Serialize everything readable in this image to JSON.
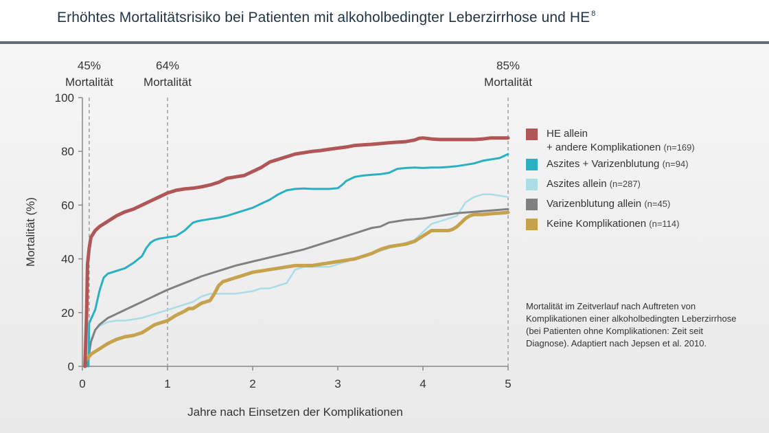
{
  "title": "Erhöhtes Mortalitätsrisiko bei Patienten mit alkoholbedingter Leberzirrhose und HE",
  "title_superscript": "8",
  "colors": {
    "title_text": "#1f3446",
    "rule": "#5f6e79",
    "axis": "#8a8a8a",
    "ref_line": "#8a8a8a"
  },
  "chart_data": {
    "type": "line",
    "xlabel": "Jahre nach Einsetzen der Komplikationen",
    "ylabel": "Mortalität (%)",
    "xlim": [
      0,
      5
    ],
    "ylim": [
      0,
      100
    ],
    "xticks": [
      "0",
      "1",
      "2",
      "3",
      "4",
      "5"
    ],
    "yticks": [
      "0",
      "20",
      "40",
      "60",
      "80",
      "100"
    ],
    "grid": false,
    "legend_position": "right",
    "reference_lines": [
      {
        "x": 0.08,
        "pct": "45%",
        "text": "Mortalität"
      },
      {
        "x": 1.0,
        "pct": "64%",
        "text": "Mortalität"
      },
      {
        "x": 5.0,
        "pct": "85%",
        "text": "Mortalität"
      }
    ],
    "series": [
      {
        "name": "HE allein",
        "name_line2": "+ andere Komplikationen",
        "n": "(n=169)",
        "color": "#b05656",
        "stroke": 5,
        "x": [
          0.03,
          0.05,
          0.06,
          0.08,
          0.1,
          0.15,
          0.2,
          0.3,
          0.4,
          0.5,
          0.6,
          0.7,
          0.8,
          0.9,
          1.0,
          1.1,
          1.2,
          1.3,
          1.4,
          1.5,
          1.6,
          1.7,
          1.8,
          1.9,
          2.0,
          2.1,
          2.2,
          2.3,
          2.4,
          2.5,
          2.6,
          2.7,
          2.8,
          2.9,
          3.0,
          3.1,
          3.2,
          3.3,
          3.4,
          3.5,
          3.6,
          3.7,
          3.8,
          3.9,
          3.95,
          4.0,
          4.1,
          4.2,
          4.3,
          4.4,
          4.5,
          4.6,
          4.7,
          4.8,
          4.9,
          5.0
        ],
        "y": [
          0,
          20,
          38,
          44,
          48,
          50.5,
          52,
          54,
          56,
          57.5,
          58.5,
          60,
          61.5,
          63,
          64.5,
          65.5,
          66,
          66.3,
          66.8,
          67.5,
          68.5,
          70,
          70.5,
          71,
          72.5,
          74,
          76,
          77,
          78,
          79,
          79.5,
          80,
          80.3,
          80.8,
          81.2,
          81.6,
          82.2,
          82.4,
          82.6,
          82.9,
          83.2,
          83.4,
          83.6,
          84.2,
          84.8,
          85,
          84.6,
          84.4,
          84.4,
          84.4,
          84.4,
          84.4,
          84.6,
          85,
          85,
          85
        ]
      },
      {
        "name": "Aszites + Varizenblutung",
        "n": "(n=94)",
        "color": "#2ab0c3",
        "stroke": 3,
        "x": [
          0.07,
          0.08,
          0.1,
          0.15,
          0.2,
          0.25,
          0.3,
          0.4,
          0.5,
          0.6,
          0.7,
          0.75,
          0.8,
          0.85,
          0.9,
          1.0,
          1.1,
          1.2,
          1.25,
          1.3,
          1.35,
          1.4,
          1.5,
          1.6,
          1.7,
          1.8,
          1.9,
          2.0,
          2.1,
          2.2,
          2.3,
          2.4,
          2.5,
          2.6,
          2.7,
          2.8,
          2.9,
          3.0,
          3.05,
          3.1,
          3.2,
          3.3,
          3.4,
          3.5,
          3.6,
          3.7,
          3.8,
          3.9,
          4.0,
          4.1,
          4.2,
          4.3,
          4.4,
          4.5,
          4.6,
          4.7,
          4.8,
          4.9,
          5.0
        ],
        "y": [
          0,
          16,
          17.5,
          21,
          28,
          33,
          34.5,
          35.5,
          36.5,
          38.5,
          41,
          44,
          46,
          47,
          47.5,
          48,
          48.5,
          50.5,
          52,
          53.5,
          54,
          54.3,
          54.8,
          55.3,
          56,
          57,
          58,
          59,
          60.5,
          62,
          64,
          65.5,
          66,
          66.2,
          66,
          66,
          66,
          66.3,
          67.5,
          69,
          70.5,
          71,
          71.3,
          71.5,
          72,
          73.5,
          73.8,
          74,
          73.8,
          74,
          74,
          74.2,
          74.5,
          75,
          75.5,
          76.5,
          77,
          77.5,
          79
        ]
      },
      {
        "name": "Aszites allein",
        "n": "(n=287)",
        "color": "#aadde6",
        "stroke": 2.5,
        "x": [
          0.07,
          0.1,
          0.15,
          0.2,
          0.3,
          0.4,
          0.5,
          0.6,
          0.7,
          0.8,
          0.9,
          1.0,
          1.1,
          1.2,
          1.3,
          1.4,
          1.5,
          1.6,
          1.7,
          1.8,
          1.9,
          2.0,
          2.1,
          2.2,
          2.3,
          2.4,
          2.5,
          2.6,
          2.7,
          2.8,
          2.9,
          3.0,
          3.1,
          3.2,
          3.3,
          3.4,
          3.5,
          3.6,
          3.7,
          3.8,
          3.9,
          4.0,
          4.1,
          4.2,
          4.3,
          4.4,
          4.5,
          4.6,
          4.7,
          4.8,
          4.9,
          5.0
        ],
        "y": [
          0,
          10,
          13.5,
          15,
          16.5,
          17,
          17,
          17.5,
          18,
          19,
          20,
          21,
          22,
          23,
          24,
          26,
          27,
          27,
          27,
          27,
          27.5,
          28,
          29,
          29,
          30,
          31,
          36,
          37,
          37,
          37,
          37,
          38,
          39,
          40,
          41,
          42,
          43,
          44,
          45,
          46,
          47,
          50,
          53,
          54,
          55,
          56,
          61,
          63,
          64,
          64,
          63.5,
          63
        ]
      },
      {
        "name": "Varizenblutung allein",
        "n": "(n=45)",
        "color": "#808080",
        "stroke": 3,
        "x": [
          0.05,
          0.08,
          0.1,
          0.15,
          0.2,
          0.3,
          0.4,
          0.5,
          0.6,
          0.7,
          0.8,
          0.9,
          1.0,
          1.2,
          1.4,
          1.6,
          1.8,
          2.0,
          2.2,
          2.4,
          2.6,
          2.8,
          3.0,
          3.2,
          3.4,
          3.5,
          3.6,
          3.8,
          4.0,
          4.2,
          4.4,
          4.6,
          4.8,
          5.0
        ],
        "y": [
          0,
          5,
          9,
          13.5,
          15.5,
          18,
          19.5,
          21,
          22.5,
          24,
          25.5,
          27,
          28.5,
          31,
          33.5,
          35.5,
          37.5,
          39,
          40.5,
          42,
          43.5,
          45.5,
          47.5,
          49.5,
          51.5,
          52,
          53.5,
          54.5,
          55,
          56,
          57,
          57.5,
          58,
          58.5
        ]
      },
      {
        "name": "Keine Komplikationen",
        "n": "(n=114)",
        "color": "#c6a24c",
        "stroke": 5,
        "x": [
          0.05,
          0.1,
          0.15,
          0.2,
          0.3,
          0.4,
          0.5,
          0.6,
          0.7,
          0.75,
          0.8,
          0.85,
          0.9,
          1.0,
          1.05,
          1.1,
          1.2,
          1.25,
          1.3,
          1.35,
          1.4,
          1.45,
          1.5,
          1.55,
          1.6,
          1.65,
          1.7,
          1.8,
          1.9,
          2.0,
          2.1,
          2.2,
          2.3,
          2.4,
          2.5,
          2.6,
          2.7,
          2.8,
          2.9,
          3.0,
          3.1,
          3.2,
          3.3,
          3.4,
          3.5,
          3.6,
          3.7,
          3.8,
          3.9,
          4.0,
          4.1,
          4.2,
          4.3,
          4.35,
          4.4,
          4.45,
          4.5,
          4.55,
          4.6,
          4.7,
          4.8,
          4.9,
          5.0
        ],
        "y": [
          2.5,
          4.5,
          5.5,
          6.5,
          8.5,
          10,
          11,
          11.5,
          12.5,
          13.5,
          14.5,
          15.5,
          16,
          17,
          18,
          19,
          20.5,
          21.5,
          21.5,
          22.5,
          23.5,
          24,
          24.5,
          27,
          30,
          31.5,
          32,
          33,
          34,
          35,
          35.5,
          36,
          36.5,
          37,
          37.5,
          37.5,
          37.5,
          38,
          38.5,
          39,
          39.5,
          40,
          41,
          42,
          43.5,
          44.5,
          45,
          45.5,
          46.5,
          48.5,
          50.5,
          50.5,
          50.5,
          51,
          52,
          53.5,
          55,
          56,
          56.5,
          56.5,
          56.8,
          57,
          57.3
        ]
      }
    ]
  },
  "footnote": "Mortalität im Zeitverlauf nach Auftreten von Komplikationen einer alkoholbedingten Leberzirrhose (bei Patienten ohne Komplikationen: Zeit seit Diagnose). Adaptiert nach Jepsen et al. 2010."
}
